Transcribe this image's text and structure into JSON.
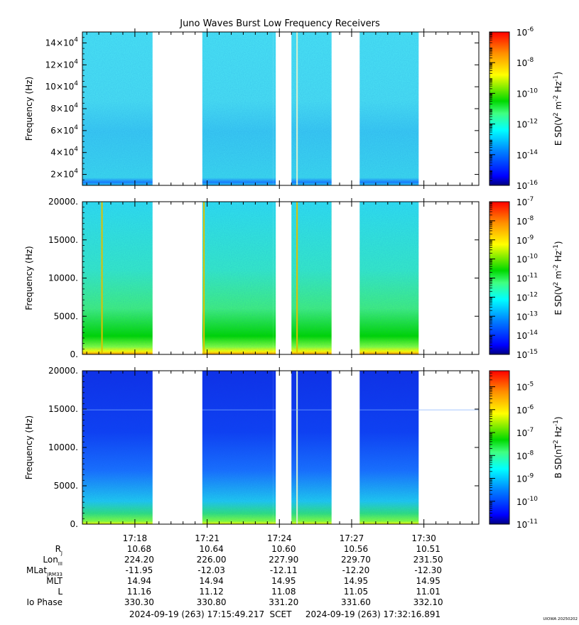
{
  "title": "Juno Waves Burst Low Frequency Receivers",
  "colors": {
    "colormap": [
      "#00007f",
      "#0000ff",
      "#0080ff",
      "#00ffff",
      "#40ff80",
      "#00d800",
      "#ffff00",
      "#ff9000",
      "#ff0000"
    ],
    "background": "#ffffff"
  },
  "panels": [
    {
      "ylabel": "Frequency (Hz)",
      "yticks": [
        {
          "value": 20000,
          "base": "2×10",
          "exp": "4"
        },
        {
          "value": 40000,
          "base": "4×10",
          "exp": "4"
        },
        {
          "value": 60000,
          "base": "6×10",
          "exp": "4"
        },
        {
          "value": 80000,
          "base": "8×10",
          "exp": "4"
        },
        {
          "value": 100000,
          "base": "10×10",
          "exp": "4"
        },
        {
          "value": 120000,
          "base": "12×10",
          "exp": "4"
        },
        {
          "value": 140000,
          "base": "14×10",
          "exp": "4"
        }
      ],
      "ylim": [
        10000,
        150000
      ],
      "cbar_label": "E SD(V",
      "cbar_label_parts": [
        "E SD(V",
        "2",
        " m",
        "-2",
        " Hz",
        "-1",
        ")"
      ],
      "cbar_range_exp": [
        -16,
        -6
      ],
      "cbar_ticks": [
        {
          "base": "10",
          "exp": "-6"
        },
        {
          "base": "10",
          "exp": "-8"
        },
        {
          "base": "10",
          "exp": "-10"
        },
        {
          "base": "10",
          "exp": "-12"
        },
        {
          "base": "10",
          "exp": "-14"
        },
        {
          "base": "10",
          "exp": "-16"
        }
      ],
      "cbar_tick_exps": [
        -6,
        -8,
        -10,
        -12,
        -14,
        -16
      ],
      "style": "hf"
    },
    {
      "ylabel": "Frequency (Hz)",
      "yticks": [
        {
          "value": 0,
          "label": "0."
        },
        {
          "value": 5000,
          "label": "5000."
        },
        {
          "value": 10000,
          "label": "10000."
        },
        {
          "value": 15000,
          "label": "15000."
        },
        {
          "value": 20000,
          "label": "20000."
        }
      ],
      "ylim": [
        0,
        20000
      ],
      "cbar_label_parts": [
        "E SD(V",
        "2",
        " m",
        "-2",
        " Hz",
        "-1",
        ")"
      ],
      "cbar_range_exp": [
        -15,
        -7
      ],
      "cbar_ticks": [
        {
          "base": "10",
          "exp": "-7"
        },
        {
          "base": "10",
          "exp": "-8"
        },
        {
          "base": "10",
          "exp": "-9"
        },
        {
          "base": "10",
          "exp": "-10"
        },
        {
          "base": "10",
          "exp": "-11"
        },
        {
          "base": "10",
          "exp": "-12"
        },
        {
          "base": "10",
          "exp": "-13"
        },
        {
          "base": "10",
          "exp": "-14"
        },
        {
          "base": "10",
          "exp": "-15"
        }
      ],
      "cbar_tick_exps": [
        -7,
        -8,
        -9,
        -10,
        -11,
        -12,
        -13,
        -14,
        -15
      ],
      "style": "lfe"
    },
    {
      "ylabel": "Frequency (Hz)",
      "yticks": [
        {
          "value": 0,
          "label": "0."
        },
        {
          "value": 5000,
          "label": "5000."
        },
        {
          "value": 10000,
          "label": "10000."
        },
        {
          "value": 15000,
          "label": "15000."
        },
        {
          "value": 20000,
          "label": "20000."
        }
      ],
      "ylim": [
        0,
        20000
      ],
      "cbar_label_parts": [
        "B SD(nT",
        "2",
        " Hz",
        "-1",
        ")"
      ],
      "cbar_range_exp": [
        -11,
        -4.3
      ],
      "cbar_ticks": [
        {
          "base": "10",
          "exp": "-5"
        },
        {
          "base": "10",
          "exp": "-6"
        },
        {
          "base": "10",
          "exp": "-7"
        },
        {
          "base": "10",
          "exp": "-8"
        },
        {
          "base": "10",
          "exp": "-9"
        },
        {
          "base": "10",
          "exp": "-10"
        },
        {
          "base": "10",
          "exp": "-11"
        }
      ],
      "cbar_tick_exps": [
        -5,
        -6,
        -7,
        -8,
        -9,
        -10,
        -11
      ],
      "style": "lfb"
    }
  ],
  "chart_data": {
    "type": "heatmap",
    "title": "Juno Waves Burst Low Frequency Receivers",
    "time_range": [
      "17:15:49.217",
      "17:32:16.891"
    ],
    "time_range_seconds_past_17h": [
      949.217,
      1936.891
    ],
    "xtick_labels": [
      "17:18",
      "17:21",
      "17:24",
      "17:27",
      "17:30"
    ],
    "xtick_seconds": [
      1080,
      1260,
      1440,
      1620,
      1800
    ],
    "data_intervals_seconds": [
      [
        949,
        1245
      ],
      [
        1245,
        1382
      ],
      [
        1382,
        1425
      ],
      [
        1425,
        1567
      ],
      [
        1567,
        1787
      ],
      [
        1787,
        1936
      ]
    ],
    "data_present": [
      true,
      false,
      true,
      false,
      true,
      false,
      true,
      false,
      true
    ],
    "data_gaps_seconds": [
      [
        1124,
        1248
      ],
      [
        1431,
        1470
      ],
      [
        1570,
        1640
      ]
    ],
    "ephemeris": {
      "labels": [
        {
          "main": "R",
          "sub": "J"
        },
        {
          "main": "Lon",
          "sub": "III"
        },
        {
          "main": "MLat",
          "sub": "JRM33"
        },
        {
          "main": "MLT",
          "sub": ""
        },
        {
          "main": "L",
          "sub": ""
        },
        {
          "main": "Io Phase",
          "sub": ""
        }
      ],
      "columns": [
        {
          "time": "17:18",
          "values": [
            "10.68",
            "224.20",
            "-11.95",
            "14.94",
            "11.16",
            "330.30"
          ]
        },
        {
          "time": "17:21",
          "values": [
            "10.64",
            "226.00",
            "-12.03",
            "14.94",
            "11.12",
            "330.80"
          ]
        },
        {
          "time": "17:24",
          "values": [
            "10.60",
            "227.90",
            "-12.11",
            "14.95",
            "11.08",
            "331.20"
          ]
        },
        {
          "time": "17:27",
          "values": [
            "10.56",
            "229.70",
            "-12.20",
            "14.95",
            "11.05",
            "331.60"
          ]
        },
        {
          "time": "17:30",
          "values": [
            "10.51",
            "231.50",
            "-12.30",
            "14.95",
            "11.01",
            "332.10"
          ]
        }
      ]
    }
  },
  "footer": {
    "start": "2024-09-19 (263) 17:15:49.217",
    "scet": "SCET",
    "end": "2024-09-19 (263) 17:32:16.891",
    "stamp": "UIOWA 20250202"
  }
}
